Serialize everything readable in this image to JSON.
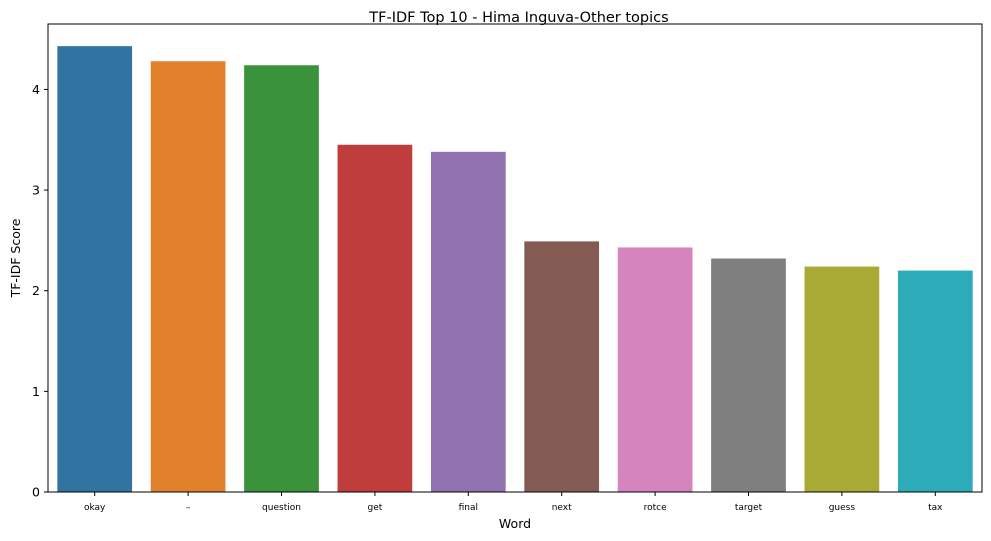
{
  "chart_data": {
    "type": "bar",
    "title": "TF-IDF Top 10 - Hima Inguva-Other topics",
    "xlabel": "Word",
    "ylabel": "TF-IDF Score",
    "categories": [
      "okay",
      "–",
      "question",
      "get",
      "final",
      "next",
      "rotce",
      "target",
      "guess",
      "tax"
    ],
    "values": [
      4.43,
      4.28,
      4.24,
      3.45,
      3.38,
      2.49,
      2.43,
      2.32,
      2.24,
      2.2
    ],
    "ylim": [
      0,
      4.65
    ],
    "yticks": [
      0,
      1,
      2,
      3,
      4
    ],
    "grid": false,
    "legend": "none",
    "colors": [
      "#3274a1",
      "#e1812c",
      "#3a923a",
      "#c03d3e",
      "#9372b2",
      "#845b53",
      "#d684bd",
      "#7f7f7f",
      "#a9aa35",
      "#2eabb8"
    ]
  }
}
